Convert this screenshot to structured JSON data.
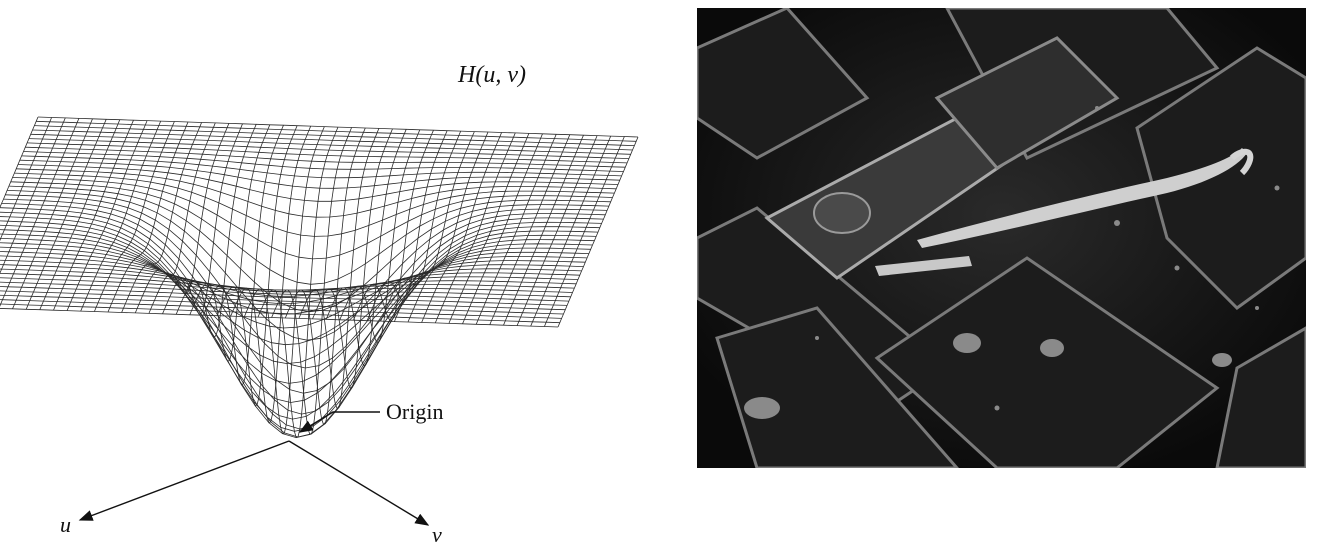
{
  "surface_plot": {
    "function_label": "H(u, v)",
    "origin_label": "Origin",
    "axis_u_label": "u",
    "axis_v_label": "v",
    "line_color": "#2a2a2a"
  },
  "photo": {
    "description_icon": "sem-micrograph-icon",
    "background_color": "#0b0b0b"
  }
}
